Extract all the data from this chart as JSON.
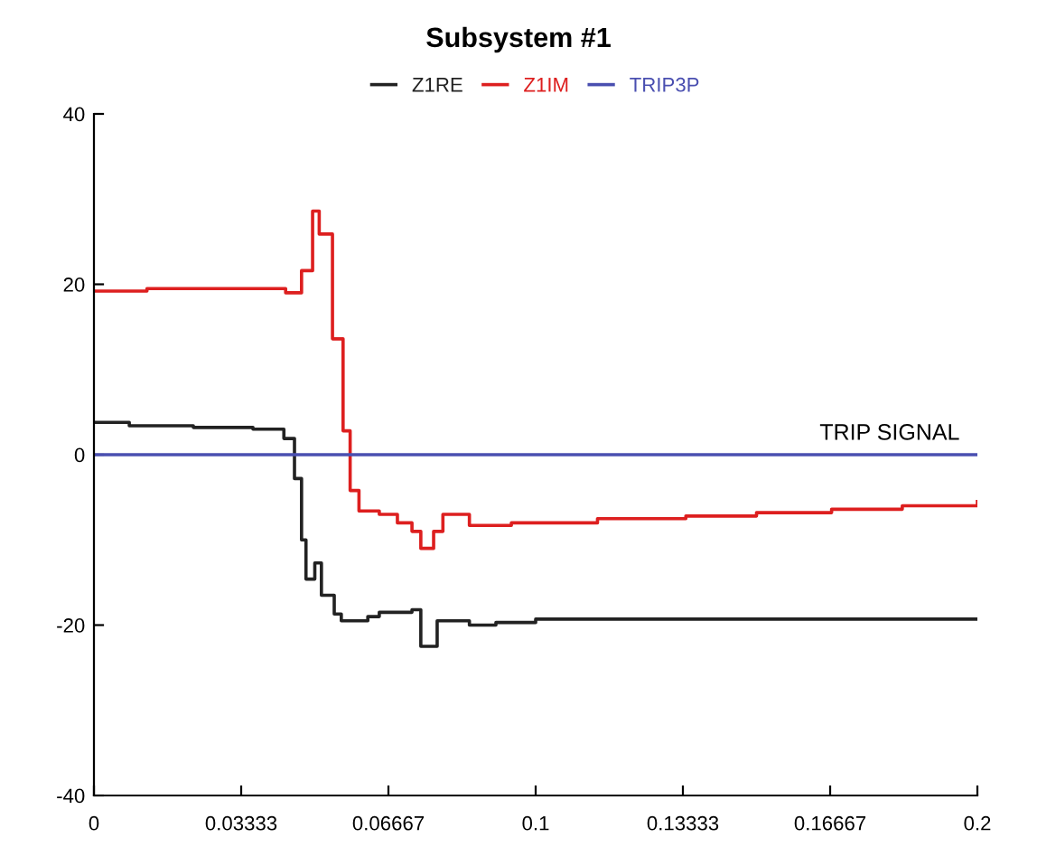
{
  "chart_data": {
    "type": "step",
    "title": "Subsystem #1",
    "xlim": [
      0,
      0.2
    ],
    "ylim": [
      -40,
      40
    ],
    "xticks": [
      0,
      {
        "value": 0.033333,
        "label": "0.03333"
      },
      {
        "value": 0.066667,
        "label": "0.06667"
      },
      0.1,
      {
        "value": 0.133333,
        "label": "0.13333"
      },
      {
        "value": 0.166667,
        "label": "0.16667"
      },
      0.2
    ],
    "yticks": [
      -40,
      -20,
      0,
      20,
      40
    ],
    "grid": false,
    "legend": "top",
    "line_style": "solid",
    "marker": "none",
    "series": [
      {
        "name": "Z1RE",
        "color": "#222222",
        "x": [
          0,
          0.008,
          0.0225,
          0.036,
          0.043,
          0.0454,
          0.047,
          0.048,
          0.05,
          0.0515,
          0.0544,
          0.056,
          0.062,
          0.0646,
          0.072,
          0.074,
          0.0777,
          0.085,
          0.091,
          0.1,
          0.2
        ],
        "values": [
          3.8,
          3.4,
          3.2,
          3.0,
          1.9,
          -2.8,
          -10,
          -14.6,
          -12.7,
          -16.5,
          -18.7,
          -19.5,
          -19,
          -18.5,
          -18.2,
          -22.5,
          -19.5,
          -20,
          -19.7,
          -19.3,
          -19.3
        ]
      },
      {
        "name": "Z1IM",
        "color": "#dd1f1f",
        "x": [
          0,
          0.012,
          0.0434,
          0.047,
          0.0495,
          0.051,
          0.054,
          0.0564,
          0.058,
          0.06,
          0.0646,
          0.0687,
          0.072,
          0.074,
          0.0769,
          0.079,
          0.085,
          0.0945,
          0.114,
          0.134,
          0.15,
          0.167,
          0.183,
          0.2
        ],
        "values": [
          19.2,
          19.5,
          19,
          21.6,
          28.6,
          25.9,
          13.6,
          2.8,
          -4.2,
          -6.6,
          -7,
          -8,
          -9,
          -11,
          -9,
          -7,
          -8.3,
          -8,
          -7.5,
          -7.2,
          -6.8,
          -6.4,
          -6,
          -5.5
        ]
      },
      {
        "name": "TRIP3P",
        "color": "#4a4fb0",
        "x": [
          0,
          0.2
        ],
        "values": [
          0,
          0
        ]
      }
    ],
    "annotations": [
      "TRIP SIGNAL"
    ]
  }
}
